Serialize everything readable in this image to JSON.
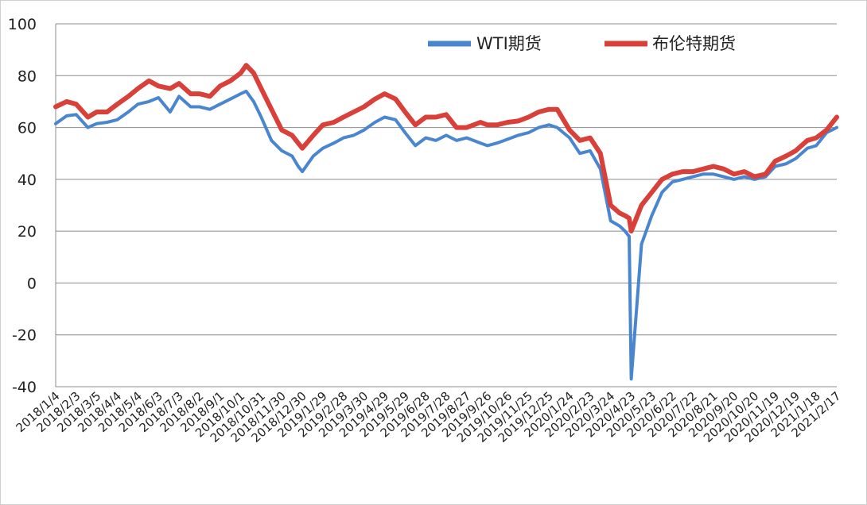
{
  "chart_data": {
    "type": "line",
    "title": "",
    "xlabel": "",
    "ylabel": "",
    "ylim": [
      -40,
      100
    ],
    "yticks": [
      "100",
      "80",
      "60",
      "40",
      "20",
      "0",
      "-20",
      "-40"
    ],
    "grid": true,
    "legend_position": "top-right",
    "x_tick_labels": [
      "2018/1/4",
      "2018/2/3",
      "2018/3/5",
      "2018/4/4",
      "2018/5/4",
      "2018/6/3",
      "2018/7/3",
      "2018/8/2",
      "2018/9/1",
      "2018/10/1",
      "2018/10/31",
      "2018/11/30",
      "2018/12/30",
      "2019/1/29",
      "2019/2/28",
      "2019/3/30",
      "2019/4/29",
      "2019/5/29",
      "2019/6/28",
      "2019/7/28",
      "2019/8/27",
      "2019/9/26",
      "2019/10/26",
      "2019/11/25",
      "2019/12/25",
      "2020/1/24",
      "2020/2/23",
      "2020/3/24",
      "2020/4/23",
      "2020/5/23",
      "2020/6/22",
      "2020/7/22",
      "2020/8/21",
      "2020/9/20",
      "2020/10/20",
      "2020/11/19",
      "2020/12/19",
      "2021/1/18",
      "2021/2/17"
    ],
    "x": [
      "2018-01-04",
      "2018-01-20",
      "2018-02-03",
      "2018-02-20",
      "2018-03-05",
      "2018-03-20",
      "2018-04-04",
      "2018-04-20",
      "2018-05-04",
      "2018-05-20",
      "2018-06-03",
      "2018-06-20",
      "2018-07-03",
      "2018-07-20",
      "2018-08-02",
      "2018-08-17",
      "2018-09-01",
      "2018-09-16",
      "2018-10-01",
      "2018-10-09",
      "2018-10-20",
      "2018-10-31",
      "2018-11-15",
      "2018-11-30",
      "2018-12-15",
      "2018-12-24",
      "2018-12-30",
      "2019-01-15",
      "2019-01-29",
      "2019-02-14",
      "2019-02-28",
      "2019-03-15",
      "2019-03-30",
      "2019-04-15",
      "2019-04-29",
      "2019-05-15",
      "2019-05-29",
      "2019-06-13",
      "2019-06-28",
      "2019-07-13",
      "2019-07-28",
      "2019-08-12",
      "2019-08-27",
      "2019-09-16",
      "2019-09-26",
      "2019-10-10",
      "2019-10-26",
      "2019-11-10",
      "2019-11-25",
      "2019-12-10",
      "2019-12-25",
      "2020-01-06",
      "2020-01-24",
      "2020-02-08",
      "2020-02-23",
      "2020-03-09",
      "2020-03-24",
      "2020-04-06",
      "2020-04-14",
      "2020-04-20",
      "2020-04-23",
      "2020-05-08",
      "2020-05-23",
      "2020-06-07",
      "2020-06-22",
      "2020-07-07",
      "2020-07-22",
      "2020-08-06",
      "2020-08-21",
      "2020-09-05",
      "2020-09-20",
      "2020-10-05",
      "2020-10-20",
      "2020-11-05",
      "2020-11-19",
      "2020-12-05",
      "2020-12-19",
      "2021-01-05",
      "2021-01-18",
      "2021-02-02",
      "2021-02-17"
    ],
    "series": [
      {
        "name": "WTI期货",
        "color": "#4a86d0",
        "values": [
          61.5,
          64.5,
          65,
          60,
          61.5,
          62,
          63,
          66,
          69,
          70,
          71.5,
          66,
          72,
          68,
          68,
          67,
          69,
          71,
          73,
          74,
          70,
          64,
          55,
          51,
          49,
          45,
          43,
          49,
          52,
          54,
          56,
          57,
          59,
          62,
          64,
          63,
          58,
          53,
          56,
          55,
          57,
          55,
          56,
          54,
          53,
          54,
          55.5,
          57,
          58,
          60,
          61,
          60,
          56,
          50,
          51,
          44,
          24,
          22,
          20,
          18,
          -37,
          15,
          26,
          35,
          39,
          40,
          41,
          42,
          42,
          41,
          40,
          41,
          40,
          41,
          45,
          46,
          48,
          52,
          53,
          58,
          60
        ]
      },
      {
        "name": "布伦特期货",
        "color": "#d9403a",
        "values": [
          68,
          70,
          69,
          64,
          66,
          66,
          69,
          72,
          75,
          78,
          76,
          75,
          77,
          73,
          73,
          72,
          76,
          78,
          81,
          84,
          81,
          75,
          67,
          59,
          57,
          54,
          52,
          57,
          61,
          62,
          64,
          66,
          68,
          71,
          73,
          71,
          66,
          61,
          64,
          64,
          65,
          60,
          60,
          62,
          61,
          61,
          62,
          62.5,
          64,
          66,
          67,
          67,
          59,
          55,
          56,
          50,
          30,
          27,
          26,
          25,
          20,
          30,
          35,
          40,
          42,
          43,
          43,
          44,
          45,
          44,
          42,
          43,
          41,
          42,
          47,
          49,
          51,
          55,
          56,
          59,
          64
        ]
      }
    ]
  },
  "legend": {
    "wti_label": "WTI期货",
    "brent_label": "布伦特期货",
    "wti_color": "#4a86d0",
    "brent_color": "#d9403a"
  }
}
